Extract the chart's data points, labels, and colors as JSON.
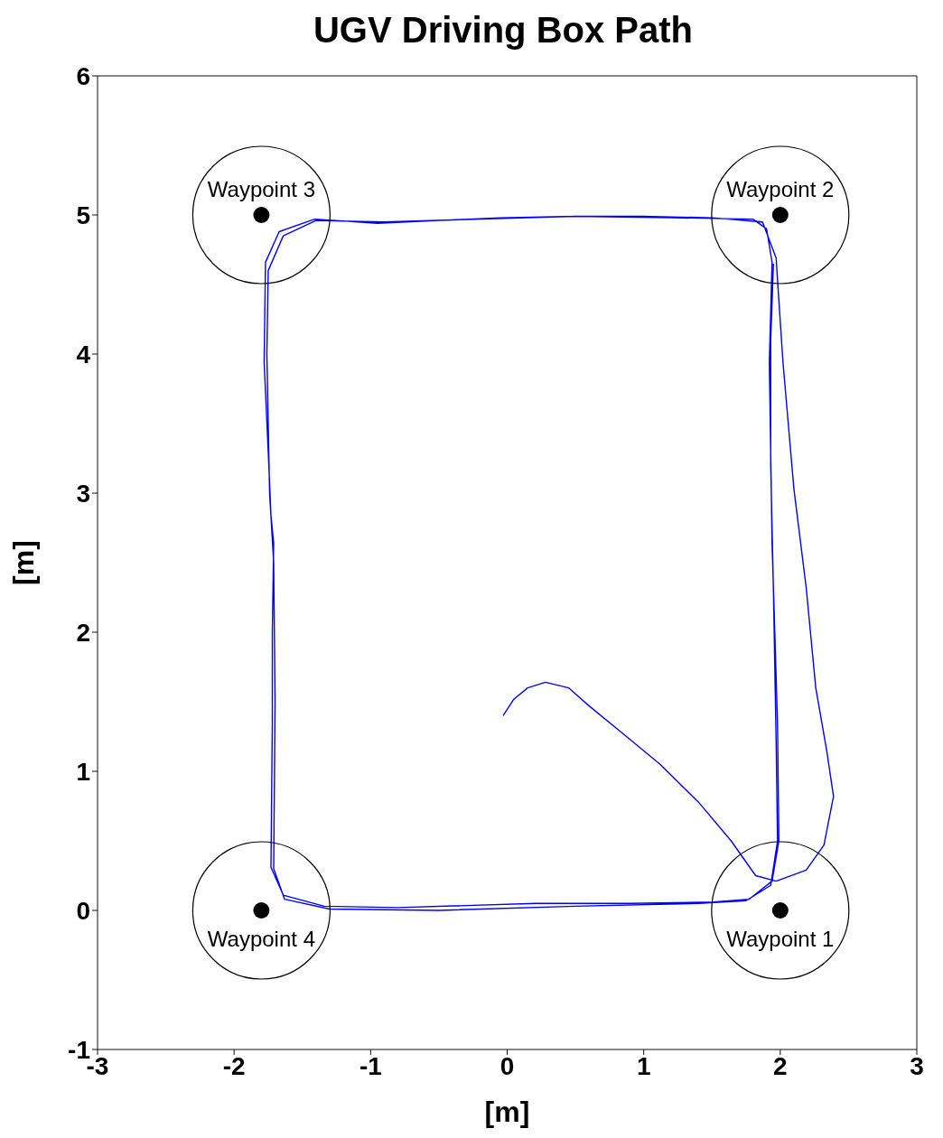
{
  "chart_data": {
    "type": "line",
    "title": "UGV Driving Box Path",
    "xlabel": "[m]",
    "ylabel": "[m]",
    "xlim": [
      -3,
      3
    ],
    "ylim": [
      -1,
      6
    ],
    "xticks": [
      -3,
      -2,
      -1,
      0,
      1,
      2,
      3
    ],
    "yticks": [
      -1,
      0,
      1,
      2,
      3,
      4,
      5,
      6
    ],
    "series": [
      {
        "color": "#0000ff",
        "x": [
          -0.03,
          0.05,
          0.15,
          0.28,
          0.45,
          0.6,
          0.85,
          1.12,
          1.4,
          1.64,
          1.82,
          1.97,
          2.19,
          2.32,
          2.39,
          2.34,
          2.26,
          2.19,
          2.1,
          2.02,
          1.98,
          1.97,
          1.87,
          1.5,
          0.99,
          0.5,
          -0.05,
          -0.5,
          -0.95,
          -1.41,
          -1.67,
          -1.77,
          -1.78,
          -1.75,
          -1.73,
          -1.71,
          -1.72,
          -1.72,
          -1.73,
          -1.64,
          -1.34,
          -0.8,
          0.21,
          0.9,
          1.51,
          1.77,
          1.94,
          1.99,
          1.98,
          1.96,
          1.94,
          1.93,
          1.92,
          1.94,
          1.9,
          1.8,
          1.2,
          0.5,
          -0.2,
          -0.9,
          -1.4,
          -1.64,
          -1.75,
          -1.76,
          -1.74,
          -1.71,
          -1.7,
          -1.71,
          -1.63,
          -1.3,
          -0.5,
          0.5,
          1.4,
          1.75,
          1.93,
          1.98,
          1.97,
          1.95,
          1.93,
          1.93,
          1.95
        ],
        "values": [
          1.4,
          1.52,
          1.6,
          1.64,
          1.6,
          1.47,
          1.27,
          1.05,
          0.78,
          0.5,
          0.25,
          0.21,
          0.29,
          0.47,
          0.82,
          1.15,
          1.6,
          2.32,
          3.03,
          3.94,
          4.53,
          4.69,
          4.95,
          4.98,
          4.99,
          4.99,
          4.98,
          4.96,
          4.94,
          4.97,
          4.88,
          4.66,
          3.94,
          3.3,
          2.84,
          2.64,
          2.0,
          1.34,
          0.31,
          0.11,
          0.03,
          0.02,
          0.05,
          0.05,
          0.06,
          0.08,
          0.21,
          0.5,
          1.34,
          2.0,
          2.64,
          3.3,
          3.94,
          4.66,
          4.9,
          4.97,
          4.98,
          4.99,
          4.97,
          4.95,
          4.96,
          4.85,
          4.6,
          4.0,
          3.0,
          2.5,
          1.5,
          0.3,
          0.08,
          0.01,
          0.0,
          0.03,
          0.05,
          0.07,
          0.18,
          0.5,
          1.2,
          2.3,
          3.2,
          4.1,
          4.65
        ]
      },
      {
        "type": "scatter",
        "color": "#000000",
        "marker": "circle",
        "x": [
          2,
          2,
          -1.8,
          -1.8
        ],
        "values": [
          0,
          5,
          5,
          0
        ]
      }
    ],
    "annotations": [
      "Waypoint 1",
      "Waypoint 2",
      "Waypoint 3",
      "Waypoint 4"
    ]
  }
}
